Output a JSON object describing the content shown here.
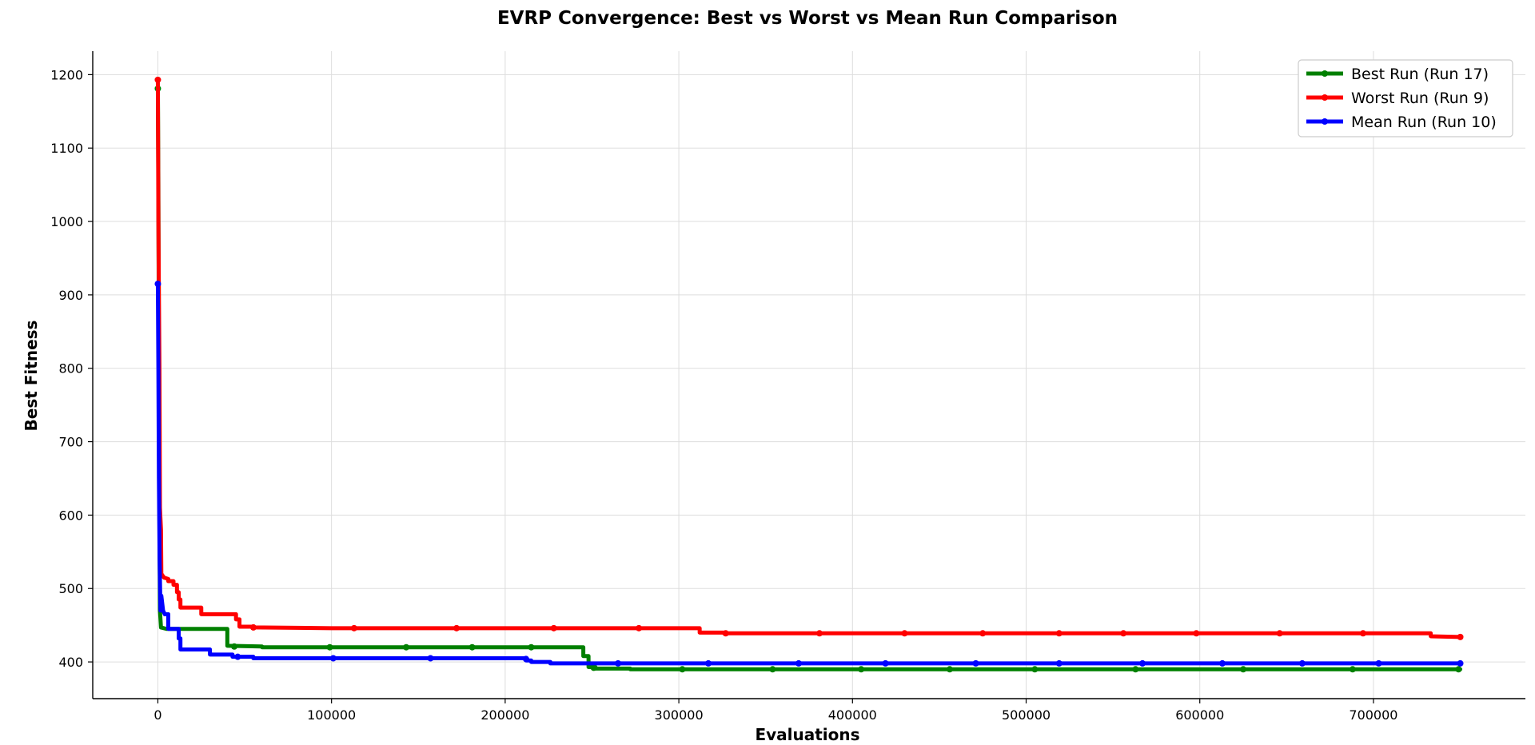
{
  "chart_data": {
    "type": "line",
    "title": "EVRP Convergence: Best vs Worst vs Mean Run Comparison",
    "xlabel": "Evaluations",
    "ylabel": "Best Fitness",
    "xlim": [
      -37500,
      787500
    ],
    "ylim": [
      350,
      1232
    ],
    "xticks": [
      0,
      100000,
      200000,
      300000,
      400000,
      500000,
      600000,
      700000
    ],
    "yticks": [
      400,
      500,
      600,
      700,
      800,
      900,
      1000,
      1100,
      1200
    ],
    "grid": true,
    "legend_position": "top-right",
    "series": [
      {
        "name": "Best Run (Run 17)",
        "color": "#008000",
        "points": [
          [
            0,
            1181
          ],
          [
            300,
            1050
          ],
          [
            600,
            800
          ],
          [
            900,
            600
          ],
          [
            1200,
            470
          ],
          [
            1800,
            447
          ],
          [
            5000,
            445
          ],
          [
            40000,
            445
          ],
          [
            40000,
            422
          ],
          [
            60000,
            421
          ],
          [
            60000,
            420
          ],
          [
            245000,
            420
          ],
          [
            245000,
            408
          ],
          [
            248000,
            408
          ],
          [
            248000,
            393
          ],
          [
            252000,
            393
          ],
          [
            252000,
            391
          ],
          [
            272000,
            391
          ],
          [
            272000,
            390
          ],
          [
            750000,
            390
          ]
        ],
        "markers": [
          [
            0,
            1181
          ],
          [
            44000,
            421
          ],
          [
            99000,
            420
          ],
          [
            143000,
            420
          ],
          [
            181000,
            420
          ],
          [
            215000,
            420
          ],
          [
            251000,
            392
          ],
          [
            302000,
            390
          ],
          [
            354000,
            390
          ],
          [
            405000,
            390
          ],
          [
            456000,
            390
          ],
          [
            505000,
            390
          ],
          [
            563000,
            390
          ],
          [
            625000,
            390
          ],
          [
            688000,
            390
          ],
          [
            749000,
            390
          ]
        ]
      },
      {
        "name": "Worst Run (Run 9)",
        "color": "#ff0000",
        "points": [
          [
            0,
            1193
          ],
          [
            300,
            1000
          ],
          [
            600,
            900
          ],
          [
            900,
            800
          ],
          [
            1200,
            610
          ],
          [
            1800,
            580
          ],
          [
            2000,
            520
          ],
          [
            3500,
            515
          ],
          [
            6000,
            513
          ],
          [
            6000,
            510
          ],
          [
            9000,
            510
          ],
          [
            9000,
            505
          ],
          [
            11000,
            505
          ],
          [
            11000,
            495
          ],
          [
            12000,
            495
          ],
          [
            12000,
            485
          ],
          [
            13000,
            485
          ],
          [
            13000,
            474
          ],
          [
            25000,
            474
          ],
          [
            25000,
            465
          ],
          [
            45000,
            465
          ],
          [
            45000,
            458
          ],
          [
            47000,
            458
          ],
          [
            47000,
            448
          ],
          [
            55000,
            448
          ],
          [
            55000,
            447
          ],
          [
            100000,
            446
          ],
          [
            312000,
            446
          ],
          [
            312000,
            440
          ],
          [
            326000,
            440
          ],
          [
            326000,
            439
          ],
          [
            733000,
            439
          ],
          [
            733000,
            435
          ],
          [
            750000,
            434
          ]
        ],
        "markers": [
          [
            0,
            1193
          ],
          [
            55000,
            447
          ],
          [
            113000,
            446
          ],
          [
            172000,
            446
          ],
          [
            228000,
            446
          ],
          [
            277000,
            446
          ],
          [
            327000,
            439
          ],
          [
            381000,
            439
          ],
          [
            430000,
            439
          ],
          [
            475000,
            439
          ],
          [
            519000,
            439
          ],
          [
            556000,
            439
          ],
          [
            598000,
            439
          ],
          [
            646000,
            439
          ],
          [
            694000,
            439
          ],
          [
            750000,
            434
          ]
        ]
      },
      {
        "name": "Mean Run (Run 10)",
        "color": "#0000ff",
        "points": [
          [
            0,
            915
          ],
          [
            300,
            800
          ],
          [
            600,
            650
          ],
          [
            1000,
            540
          ],
          [
            1500,
            470
          ],
          [
            2000,
            490
          ],
          [
            3000,
            470
          ],
          [
            4000,
            465
          ],
          [
            6000,
            465
          ],
          [
            6000,
            445
          ],
          [
            12000,
            445
          ],
          [
            12000,
            432
          ],
          [
            13000,
            432
          ],
          [
            13000,
            417
          ],
          [
            30000,
            417
          ],
          [
            30000,
            410
          ],
          [
            43000,
            410
          ],
          [
            43000,
            407
          ],
          [
            55000,
            407
          ],
          [
            55000,
            405
          ],
          [
            212000,
            405
          ],
          [
            212000,
            402
          ],
          [
            215000,
            402
          ],
          [
            215000,
            400
          ],
          [
            226000,
            400
          ],
          [
            226000,
            398
          ],
          [
            750000,
            398
          ]
        ],
        "markers": [
          [
            0,
            915
          ],
          [
            46000,
            407
          ],
          [
            101000,
            405
          ],
          [
            157000,
            405
          ],
          [
            212000,
            404
          ],
          [
            265000,
            398
          ],
          [
            317000,
            398
          ],
          [
            369000,
            398
          ],
          [
            419000,
            398
          ],
          [
            471000,
            398
          ],
          [
            519000,
            398
          ],
          [
            567000,
            398
          ],
          [
            613000,
            398
          ],
          [
            659000,
            398
          ],
          [
            703000,
            398
          ],
          [
            750000,
            398
          ]
        ]
      }
    ]
  }
}
